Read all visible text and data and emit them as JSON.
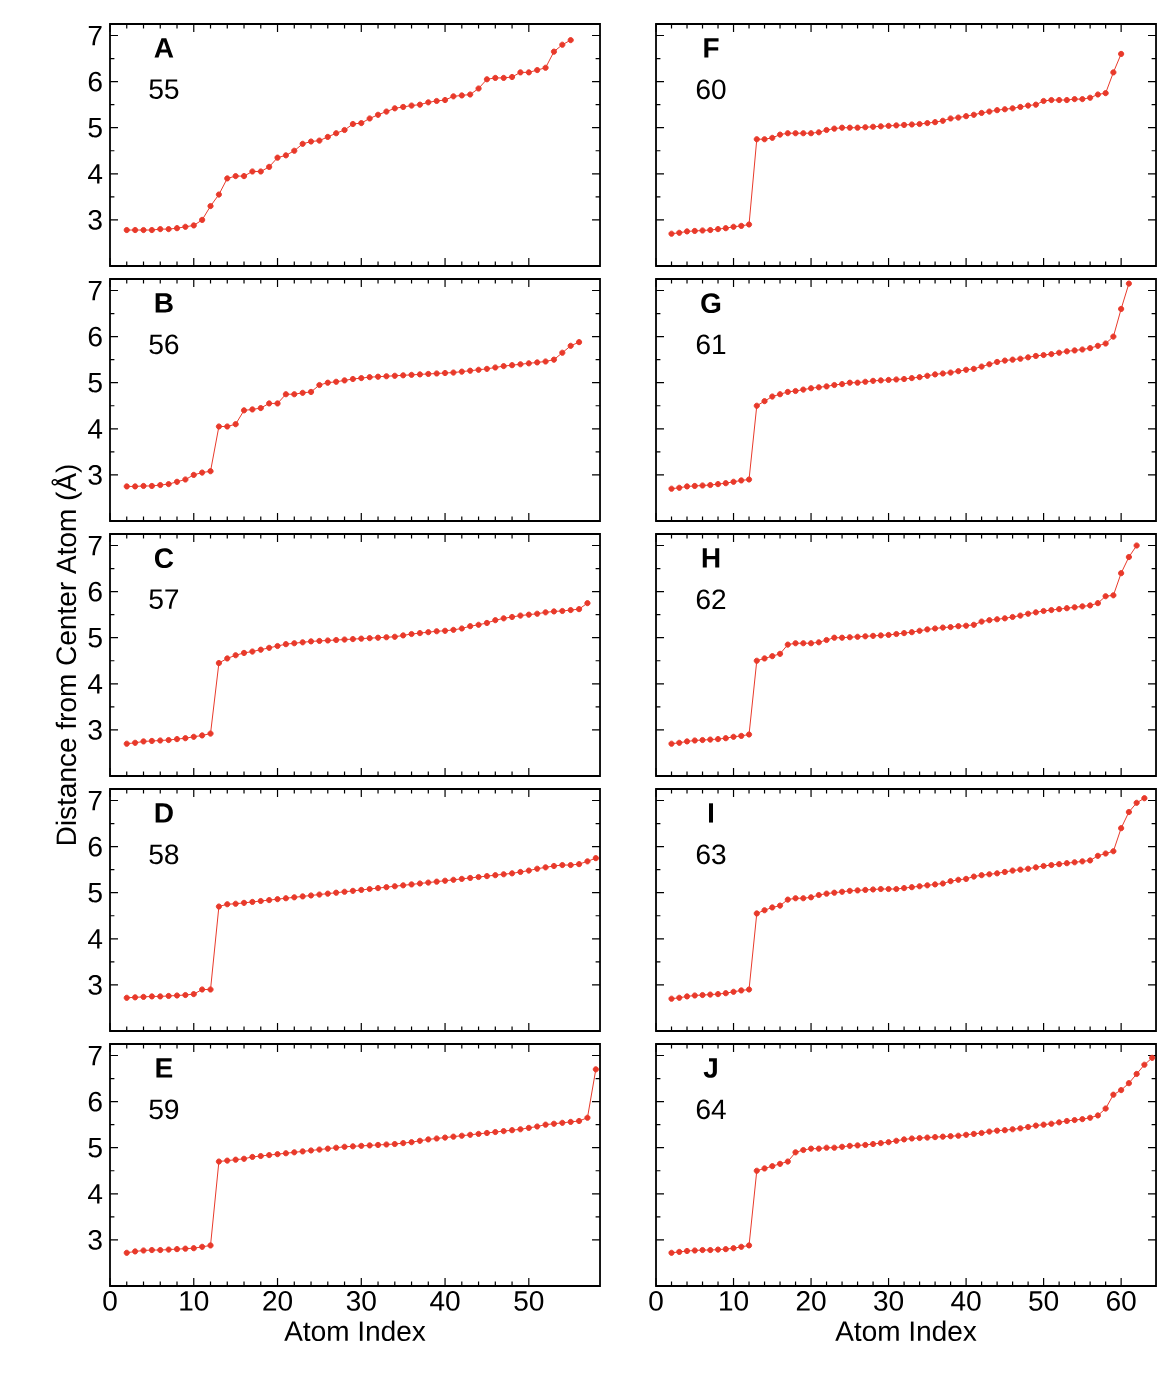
{
  "chart_data": [
    {
      "type": "line",
      "title": "A",
      "subtitle": "55",
      "color": "#e8392a",
      "marker": "circle",
      "line_style": "solid",
      "xlim": [
        0,
        58.5
      ],
      "ylim": [
        2,
        7.25
      ],
      "xticks": [
        0,
        10,
        20,
        30,
        40,
        50
      ],
      "yticks": [
        3,
        4,
        5,
        6,
        7
      ],
      "tick_labels": "y",
      "x": [
        2,
        3,
        4,
        5,
        6,
        7,
        8,
        9,
        10,
        11,
        12,
        13,
        14,
        15,
        16,
        17,
        18,
        19,
        20,
        21,
        22,
        23,
        24,
        25,
        26,
        27,
        28,
        29,
        30,
        31,
        32,
        33,
        34,
        35,
        36,
        37,
        38,
        39,
        40,
        41,
        42,
        43,
        44,
        45,
        46,
        47,
        48,
        49,
        50,
        51,
        52,
        53,
        54,
        55
      ],
      "values": [
        2.78,
        2.78,
        2.78,
        2.78,
        2.8,
        2.8,
        2.82,
        2.85,
        2.88,
        3.0,
        3.3,
        3.55,
        3.9,
        3.95,
        3.95,
        4.05,
        4.05,
        4.15,
        4.35,
        4.4,
        4.5,
        4.65,
        4.7,
        4.72,
        4.8,
        4.88,
        4.95,
        5.08,
        5.1,
        5.2,
        5.28,
        5.35,
        5.42,
        5.45,
        5.48,
        5.5,
        5.55,
        5.58,
        5.6,
        5.68,
        5.7,
        5.72,
        5.85,
        6.05,
        6.08,
        6.08,
        6.1,
        6.2,
        6.2,
        6.25,
        6.3,
        6.65,
        6.8,
        6.9
      ]
    },
    {
      "type": "line",
      "title": "B",
      "subtitle": "56",
      "color": "#e8392a",
      "marker": "circle",
      "line_style": "solid",
      "xlim": [
        0,
        58.5
      ],
      "ylim": [
        2,
        7.25
      ],
      "xticks": [
        0,
        10,
        20,
        30,
        40,
        50
      ],
      "yticks": [
        3,
        4,
        5,
        6,
        7
      ],
      "tick_labels": "y",
      "x": [
        2,
        3,
        4,
        5,
        6,
        7,
        8,
        9,
        10,
        11,
        12,
        13,
        14,
        15,
        16,
        17,
        18,
        19,
        20,
        21,
        22,
        23,
        24,
        25,
        26,
        27,
        28,
        29,
        30,
        31,
        32,
        33,
        34,
        35,
        36,
        37,
        38,
        39,
        40,
        41,
        42,
        43,
        44,
        45,
        46,
        47,
        48,
        49,
        50,
        51,
        52,
        53,
        54,
        55,
        56
      ],
      "values": [
        2.75,
        2.75,
        2.76,
        2.76,
        2.78,
        2.8,
        2.85,
        2.9,
        3.0,
        3.05,
        3.08,
        4.05,
        4.05,
        4.1,
        4.4,
        4.42,
        4.45,
        4.55,
        4.55,
        4.75,
        4.75,
        4.78,
        4.8,
        4.95,
        5.0,
        5.02,
        5.05,
        5.08,
        5.1,
        5.12,
        5.13,
        5.14,
        5.15,
        5.16,
        5.17,
        5.18,
        5.19,
        5.2,
        5.21,
        5.22,
        5.24,
        5.26,
        5.28,
        5.3,
        5.33,
        5.36,
        5.38,
        5.4,
        5.42,
        5.44,
        5.46,
        5.5,
        5.65,
        5.8,
        5.88
      ]
    },
    {
      "type": "line",
      "title": "C",
      "subtitle": "57",
      "ylabel": "Distance from Center Atom (Å)",
      "color": "#e8392a",
      "marker": "circle",
      "line_style": "solid",
      "xlim": [
        0,
        58.5
      ],
      "ylim": [
        2,
        7.25
      ],
      "xticks": [
        0,
        10,
        20,
        30,
        40,
        50
      ],
      "yticks": [
        3,
        4,
        5,
        6,
        7
      ],
      "tick_labels": "y",
      "x": [
        2,
        3,
        4,
        5,
        6,
        7,
        8,
        9,
        10,
        11,
        12,
        13,
        14,
        15,
        16,
        17,
        18,
        19,
        20,
        21,
        22,
        23,
        24,
        25,
        26,
        27,
        28,
        29,
        30,
        31,
        32,
        33,
        34,
        35,
        36,
        37,
        38,
        39,
        40,
        41,
        42,
        43,
        44,
        45,
        46,
        47,
        48,
        49,
        50,
        51,
        52,
        53,
        54,
        55,
        56,
        57
      ],
      "values": [
        2.7,
        2.72,
        2.75,
        2.76,
        2.77,
        2.78,
        2.8,
        2.82,
        2.85,
        2.88,
        2.92,
        4.45,
        4.55,
        4.62,
        4.67,
        4.7,
        4.74,
        4.78,
        4.82,
        4.86,
        4.88,
        4.9,
        4.92,
        4.93,
        4.94,
        4.95,
        4.96,
        4.97,
        4.98,
        4.99,
        5.0,
        5.01,
        5.02,
        5.05,
        5.08,
        5.1,
        5.12,
        5.14,
        5.15,
        5.17,
        5.2,
        5.25,
        5.28,
        5.32,
        5.38,
        5.42,
        5.45,
        5.48,
        5.5,
        5.52,
        5.55,
        5.57,
        5.58,
        5.6,
        5.62,
        5.75
      ]
    },
    {
      "type": "line",
      "title": "D",
      "subtitle": "58",
      "color": "#e8392a",
      "marker": "circle",
      "line_style": "solid",
      "xlim": [
        0,
        58.5
      ],
      "ylim": [
        2,
        7.25
      ],
      "xticks": [
        0,
        10,
        20,
        30,
        40,
        50
      ],
      "yticks": [
        3,
        4,
        5,
        6,
        7
      ],
      "tick_labels": "y",
      "x": [
        2,
        3,
        4,
        5,
        6,
        7,
        8,
        9,
        10,
        11,
        12,
        13,
        14,
        15,
        16,
        17,
        18,
        19,
        20,
        21,
        22,
        23,
        24,
        25,
        26,
        27,
        28,
        29,
        30,
        31,
        32,
        33,
        34,
        35,
        36,
        37,
        38,
        39,
        40,
        41,
        42,
        43,
        44,
        45,
        46,
        47,
        48,
        49,
        50,
        51,
        52,
        53,
        54,
        55,
        56,
        57,
        58
      ],
      "values": [
        2.72,
        2.73,
        2.74,
        2.75,
        2.75,
        2.76,
        2.77,
        2.78,
        2.8,
        2.9,
        2.9,
        4.7,
        4.75,
        4.76,
        4.78,
        4.8,
        4.82,
        4.84,
        4.86,
        4.88,
        4.9,
        4.92,
        4.94,
        4.96,
        4.98,
        5.0,
        5.02,
        5.04,
        5.06,
        5.08,
        5.1,
        5.12,
        5.14,
        5.16,
        5.18,
        5.2,
        5.22,
        5.24,
        5.26,
        5.28,
        5.3,
        5.32,
        5.34,
        5.36,
        5.38,
        5.4,
        5.42,
        5.45,
        5.48,
        5.52,
        5.55,
        5.58,
        5.6,
        5.6,
        5.62,
        5.68,
        5.75
      ]
    },
    {
      "type": "line",
      "title": "E",
      "subtitle": "59",
      "xlabel": "Atom Index",
      "color": "#e8392a",
      "marker": "circle",
      "line_style": "solid",
      "xlim": [
        0,
        58.5
      ],
      "ylim": [
        2,
        7.25
      ],
      "xticks": [
        0,
        10,
        20,
        30,
        40,
        50
      ],
      "yticks": [
        3,
        4,
        5,
        6,
        7
      ],
      "x": [
        2,
        3,
        4,
        5,
        6,
        7,
        8,
        9,
        10,
        11,
        12,
        13,
        14,
        15,
        16,
        17,
        18,
        19,
        20,
        21,
        22,
        23,
        24,
        25,
        26,
        27,
        28,
        29,
        30,
        31,
        32,
        33,
        34,
        35,
        36,
        37,
        38,
        39,
        40,
        41,
        42,
        43,
        44,
        45,
        46,
        47,
        48,
        49,
        50,
        51,
        52,
        53,
        54,
        55,
        56,
        57,
        58
      ],
      "values": [
        2.72,
        2.75,
        2.77,
        2.78,
        2.78,
        2.79,
        2.8,
        2.81,
        2.82,
        2.85,
        2.88,
        4.7,
        4.72,
        4.74,
        4.76,
        4.8,
        4.82,
        4.84,
        4.86,
        4.88,
        4.9,
        4.92,
        4.94,
        4.96,
        4.98,
        5.0,
        5.02,
        5.03,
        5.04,
        5.05,
        5.06,
        5.07,
        5.08,
        5.1,
        5.12,
        5.15,
        5.18,
        5.2,
        5.22,
        5.24,
        5.26,
        5.28,
        5.3,
        5.32,
        5.34,
        5.36,
        5.38,
        5.4,
        5.43,
        5.46,
        5.5,
        5.52,
        5.54,
        5.56,
        5.58,
        5.65,
        6.7
      ]
    },
    {
      "type": "line",
      "title": "F",
      "subtitle": "60",
      "color": "#e8392a",
      "marker": "circle",
      "line_style": "solid",
      "xlim": [
        0,
        64.5
      ],
      "ylim": [
        2,
        7.25
      ],
      "xticks": [
        0,
        10,
        20,
        30,
        40,
        50,
        60
      ],
      "yticks": [
        3,
        4,
        5,
        6,
        7
      ],
      "tick_labels": false,
      "x": [
        2,
        3,
        4,
        5,
        6,
        7,
        8,
        9,
        10,
        11,
        12,
        13,
        14,
        15,
        16,
        17,
        18,
        19,
        20,
        21,
        22,
        23,
        24,
        25,
        26,
        27,
        28,
        29,
        30,
        31,
        32,
        33,
        34,
        35,
        36,
        37,
        38,
        39,
        40,
        41,
        42,
        43,
        44,
        45,
        46,
        47,
        48,
        49,
        50,
        51,
        52,
        53,
        54,
        55,
        56,
        57,
        58,
        59,
        60
      ],
      "values": [
        2.7,
        2.72,
        2.75,
        2.76,
        2.77,
        2.78,
        2.8,
        2.82,
        2.85,
        2.87,
        2.9,
        4.75,
        4.75,
        4.78,
        4.85,
        4.88,
        4.88,
        4.88,
        4.88,
        4.9,
        4.95,
        4.98,
        5.0,
        5.0,
        5.0,
        5.01,
        5.02,
        5.03,
        5.04,
        5.05,
        5.06,
        5.07,
        5.08,
        5.1,
        5.12,
        5.15,
        5.2,
        5.22,
        5.25,
        5.28,
        5.32,
        5.35,
        5.38,
        5.4,
        5.42,
        5.45,
        5.48,
        5.5,
        5.58,
        5.6,
        5.6,
        5.6,
        5.62,
        5.62,
        5.65,
        5.72,
        5.75,
        6.2,
        6.6
      ]
    },
    {
      "type": "line",
      "title": "G",
      "subtitle": "61",
      "color": "#e8392a",
      "marker": "circle",
      "line_style": "solid",
      "xlim": [
        0,
        64.5
      ],
      "ylim": [
        2,
        7.25
      ],
      "xticks": [
        0,
        10,
        20,
        30,
        40,
        50,
        60
      ],
      "yticks": [
        3,
        4,
        5,
        6,
        7
      ],
      "tick_labels": false,
      "x": [
        2,
        3,
        4,
        5,
        6,
        7,
        8,
        9,
        10,
        11,
        12,
        13,
        14,
        15,
        16,
        17,
        18,
        19,
        20,
        21,
        22,
        23,
        24,
        25,
        26,
        27,
        28,
        29,
        30,
        31,
        32,
        33,
        34,
        35,
        36,
        37,
        38,
        39,
        40,
        41,
        42,
        43,
        44,
        45,
        46,
        47,
        48,
        49,
        50,
        51,
        52,
        53,
        54,
        55,
        56,
        57,
        58,
        59,
        60,
        61
      ],
      "values": [
        2.7,
        2.72,
        2.75,
        2.76,
        2.77,
        2.78,
        2.8,
        2.82,
        2.85,
        2.88,
        2.9,
        4.5,
        4.6,
        4.7,
        4.75,
        4.8,
        4.82,
        4.85,
        4.88,
        4.9,
        4.92,
        4.95,
        4.97,
        5.0,
        5.0,
        5.02,
        5.04,
        5.05,
        5.06,
        5.07,
        5.08,
        5.1,
        5.12,
        5.15,
        5.18,
        5.2,
        5.22,
        5.25,
        5.28,
        5.3,
        5.35,
        5.4,
        5.45,
        5.48,
        5.5,
        5.52,
        5.55,
        5.58,
        5.6,
        5.62,
        5.65,
        5.68,
        5.7,
        5.72,
        5.75,
        5.8,
        5.85,
        6.0,
        6.6,
        7.15
      ]
    },
    {
      "type": "line",
      "title": "H",
      "subtitle": "62",
      "color": "#e8392a",
      "marker": "circle",
      "line_style": "solid",
      "xlim": [
        0,
        64.5
      ],
      "ylim": [
        2,
        7.25
      ],
      "xticks": [
        0,
        10,
        20,
        30,
        40,
        50,
        60
      ],
      "yticks": [
        3,
        4,
        5,
        6,
        7
      ],
      "tick_labels": false,
      "x": [
        2,
        3,
        4,
        5,
        6,
        7,
        8,
        9,
        10,
        11,
        12,
        13,
        14,
        15,
        16,
        17,
        18,
        19,
        20,
        21,
        22,
        23,
        24,
        25,
        26,
        27,
        28,
        29,
        30,
        31,
        32,
        33,
        34,
        35,
        36,
        37,
        38,
        39,
        40,
        41,
        42,
        43,
        44,
        45,
        46,
        47,
        48,
        49,
        50,
        51,
        52,
        53,
        54,
        55,
        56,
        57,
        58,
        59,
        60,
        61,
        62
      ],
      "values": [
        2.7,
        2.72,
        2.75,
        2.77,
        2.78,
        2.79,
        2.8,
        2.82,
        2.85,
        2.87,
        2.9,
        4.5,
        4.55,
        4.6,
        4.65,
        4.85,
        4.88,
        4.88,
        4.88,
        4.9,
        4.95,
        5.0,
        5.0,
        5.01,
        5.02,
        5.03,
        5.04,
        5.05,
        5.06,
        5.08,
        5.1,
        5.12,
        5.15,
        5.18,
        5.2,
        5.22,
        5.23,
        5.25,
        5.26,
        5.28,
        5.35,
        5.38,
        5.4,
        5.42,
        5.45,
        5.48,
        5.52,
        5.55,
        5.58,
        5.6,
        5.62,
        5.64,
        5.66,
        5.68,
        5.7,
        5.75,
        5.9,
        5.92,
        6.4,
        6.75,
        7.0
      ]
    },
    {
      "type": "line",
      "title": "I",
      "subtitle": "63",
      "color": "#e8392a",
      "marker": "circle",
      "line_style": "solid",
      "xlim": [
        0,
        64.5
      ],
      "ylim": [
        2,
        7.25
      ],
      "xticks": [
        0,
        10,
        20,
        30,
        40,
        50,
        60
      ],
      "yticks": [
        3,
        4,
        5,
        6,
        7
      ],
      "tick_labels": false,
      "x": [
        2,
        3,
        4,
        5,
        6,
        7,
        8,
        9,
        10,
        11,
        12,
        13,
        14,
        15,
        16,
        17,
        18,
        19,
        20,
        21,
        22,
        23,
        24,
        25,
        26,
        27,
        28,
        29,
        30,
        31,
        32,
        33,
        34,
        35,
        36,
        37,
        38,
        39,
        40,
        41,
        42,
        43,
        44,
        45,
        46,
        47,
        48,
        49,
        50,
        51,
        52,
        53,
        54,
        55,
        56,
        57,
        58,
        59,
        60,
        61,
        62,
        63
      ],
      "values": [
        2.7,
        2.72,
        2.75,
        2.77,
        2.78,
        2.79,
        2.8,
        2.82,
        2.85,
        2.88,
        2.9,
        4.55,
        4.62,
        4.68,
        4.72,
        4.85,
        4.88,
        4.88,
        4.9,
        4.95,
        4.98,
        5.0,
        5.02,
        5.04,
        5.05,
        5.06,
        5.07,
        5.08,
        5.08,
        5.08,
        5.1,
        5.12,
        5.14,
        5.16,
        5.18,
        5.2,
        5.25,
        5.28,
        5.3,
        5.35,
        5.38,
        5.4,
        5.42,
        5.45,
        5.48,
        5.5,
        5.52,
        5.55,
        5.58,
        5.6,
        5.62,
        5.64,
        5.66,
        5.68,
        5.7,
        5.8,
        5.85,
        5.9,
        6.4,
        6.75,
        6.95,
        7.05
      ]
    },
    {
      "type": "line",
      "title": "J",
      "subtitle": "64",
      "xlabel": "Atom Index",
      "color": "#e8392a",
      "marker": "circle",
      "line_style": "solid",
      "xlim": [
        0,
        64.5
      ],
      "ylim": [
        2,
        7.25
      ],
      "xticks": [
        0,
        10,
        20,
        30,
        40,
        50,
        60
      ],
      "yticks": [
        3,
        4,
        5,
        6,
        7
      ],
      "tick_labels": "x",
      "x": [
        2,
        3,
        4,
        5,
        6,
        7,
        8,
        9,
        10,
        11,
        12,
        13,
        14,
        15,
        16,
        17,
        18,
        19,
        20,
        21,
        22,
        23,
        24,
        25,
        26,
        27,
        28,
        29,
        30,
        31,
        32,
        33,
        34,
        35,
        36,
        37,
        38,
        39,
        40,
        41,
        42,
        43,
        44,
        45,
        46,
        47,
        48,
        49,
        50,
        51,
        52,
        53,
        54,
        55,
        56,
        57,
        58,
        59,
        60,
        61,
        62,
        63,
        64
      ],
      "values": [
        2.72,
        2.74,
        2.76,
        2.77,
        2.78,
        2.78,
        2.79,
        2.8,
        2.82,
        2.85,
        2.88,
        4.5,
        4.55,
        4.6,
        4.65,
        4.7,
        4.9,
        4.95,
        4.98,
        4.98,
        5.0,
        5.0,
        5.02,
        5.04,
        5.05,
        5.06,
        5.08,
        5.1,
        5.12,
        5.15,
        5.18,
        5.2,
        5.21,
        5.22,
        5.23,
        5.24,
        5.25,
        5.26,
        5.28,
        5.3,
        5.32,
        5.35,
        5.37,
        5.38,
        5.4,
        5.42,
        5.45,
        5.48,
        5.5,
        5.52,
        5.55,
        5.58,
        5.6,
        5.62,
        5.65,
        5.7,
        5.85,
        6.15,
        6.25,
        6.4,
        6.6,
        6.8,
        6.95
      ]
    }
  ]
}
